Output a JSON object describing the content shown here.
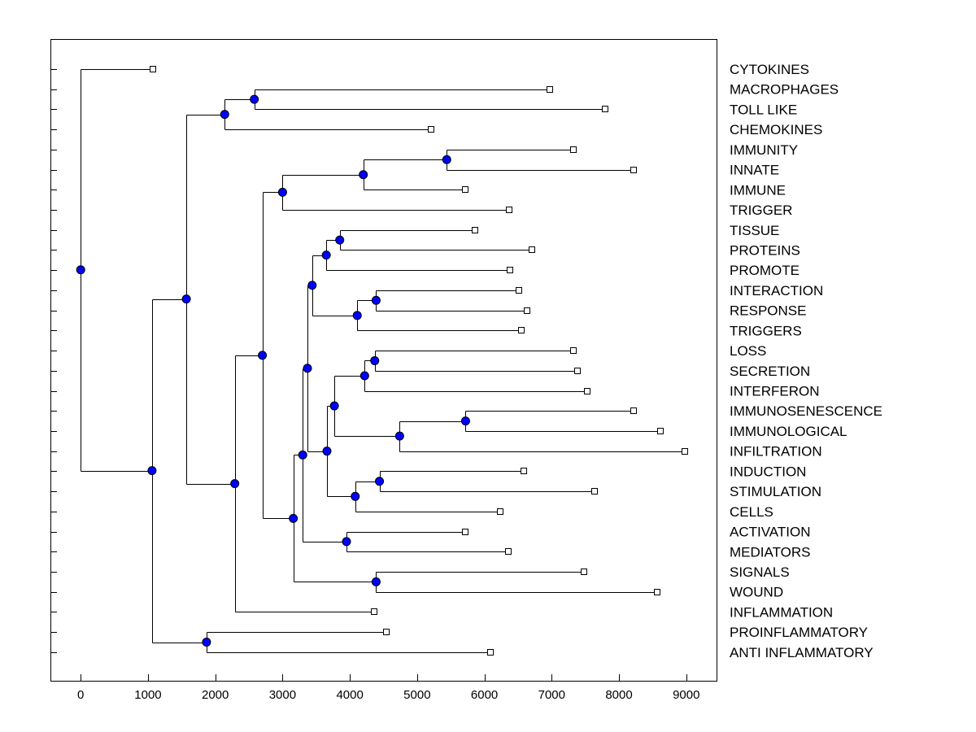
{
  "chart_data": {
    "type": "dendrogram",
    "orientation": "horizontal",
    "xlim": [
      -450,
      9450
    ],
    "xticks": [
      0,
      1000,
      2000,
      3000,
      4000,
      5000,
      6000,
      7000,
      8000,
      9000
    ],
    "xlabel": "",
    "ylabel": "",
    "colors": {
      "node": "#0000ff",
      "leaf": "#ffffff",
      "line": "#000000"
    },
    "leaves": [
      "CYTOKINES",
      "MACROPHAGES",
      "TOLL LIKE",
      "CHEMOKINES",
      "IMMUNITY",
      "INNATE",
      "IMMUNE",
      "TRIGGER",
      "TISSUE",
      "PROTEINS",
      "PROMOTE",
      "INTERACTION",
      "RESPONSE",
      "TRIGGERS",
      "LOSS",
      "SECRETION",
      "INTERFERON",
      "IMMUNOSENESCENCE",
      "IMMUNOLOGICAL",
      "INFILTRATION",
      "INDUCTION",
      "STIMULATION",
      "CELLS",
      "ACTIVATION",
      "MEDIATORS",
      "SIGNALS",
      "WOUND",
      "INFLAMMATION",
      "PROINFLAMMATORY",
      "ANTI INFLAMMATORY"
    ],
    "leaf_values": [
      1070,
      6970,
      7790,
      5210,
      7320,
      8220,
      5720,
      6370,
      5860,
      6710,
      6380,
      6510,
      6630,
      6550,
      7320,
      7380,
      7530,
      8220,
      8620,
      8980,
      6580,
      7640,
      6240,
      5720,
      6350,
      7480,
      8570,
      4360,
      4540,
      6090
    ],
    "tree": {
      "v": 0,
      "c": [
        {
          "leaf": 0
        },
        {
          "v": 1060,
          "c": [
            {
              "v": 1570,
              "c": [
                {
                  "v": 2140,
                  "c": [
                    {
                      "v": 2580,
                      "c": [
                        {
                          "leaf": 1
                        },
                        {
                          "leaf": 2
                        }
                      ]
                    },
                    {
                      "leaf": 3
                    }
                  ]
                },
                {
                  "v": 2290,
                  "c": [
                    {
                      "v": 2700,
                      "c": [
                        {
                          "v": 3000,
                          "c": [
                            {
                              "v": 4200,
                              "c": [
                                {
                                  "v": 5440,
                                  "c": [
                                    {
                                      "leaf": 4
                                    },
                                    {
                                      "leaf": 5
                                    }
                                  ]
                                },
                                {
                                  "leaf": 6
                                }
                              ]
                            },
                            {
                              "leaf": 7
                            }
                          ]
                        },
                        {
                          "v": 3160,
                          "c": [
                            {
                              "v": 3300,
                              "c": [
                                {
                                  "v": 3370,
                                  "c": [
                                    {
                                      "v": 3440,
                                      "c": [
                                        {
                                          "v": 3650,
                                          "c": [
                                            {
                                              "v": 3850,
                                              "c": [
                                                {
                                                  "leaf": 8
                                                },
                                                {
                                                  "leaf": 9
                                                }
                                              ]
                                            },
                                            {
                                              "leaf": 10
                                            }
                                          ]
                                        },
                                        {
                                          "v": 4110,
                                          "c": [
                                            {
                                              "v": 4390,
                                              "c": [
                                                {
                                                  "leaf": 11
                                                },
                                                {
                                                  "leaf": 12
                                                }
                                              ]
                                            },
                                            {
                                              "leaf": 13
                                            }
                                          ]
                                        }
                                      ]
                                    },
                                    {
                                      "v": 3660,
                                      "c": [
                                        {
                                          "v": 3770,
                                          "c": [
                                            {
                                              "v": 4220,
                                              "c": [
                                                {
                                                  "v": 4370,
                                                  "c": [
                                                    {
                                                      "leaf": 14
                                                    },
                                                    {
                                                      "leaf": 15
                                                    }
                                                  ]
                                                },
                                                {
                                                  "leaf": 16
                                                }
                                              ]
                                            },
                                            {
                                              "v": 4740,
                                              "c": [
                                                {
                                                  "v": 5720,
                                                  "c": [
                                                    {
                                                      "leaf": 17
                                                    },
                                                    {
                                                      "leaf": 18
                                                    }
                                                  ]
                                                },
                                                {
                                                  "leaf": 19
                                                }
                                              ]
                                            }
                                          ]
                                        },
                                        {
                                          "v": 4080,
                                          "c": [
                                            {
                                              "v": 4440,
                                              "c": [
                                                {
                                                  "leaf": 20
                                                },
                                                {
                                                  "leaf": 21
                                                }
                                              ]
                                            },
                                            {
                                              "leaf": 22
                                            }
                                          ]
                                        }
                                      ]
                                    }
                                  ]
                                },
                                {
                                  "v": 3950,
                                  "c": [
                                    {
                                      "leaf": 23
                                    },
                                    {
                                      "leaf": 24
                                    }
                                  ]
                                }
                              ]
                            },
                            {
                              "v": 4390,
                              "c": [
                                {
                                  "leaf": 25
                                },
                                {
                                  "leaf": 26
                                }
                              ]
                            }
                          ]
                        }
                      ]
                    },
                    {
                      "leaf": 27
                    }
                  ]
                }
              ]
            },
            {
              "v": 1870,
              "c": [
                {
                  "leaf": 28
                },
                {
                  "leaf": 29
                }
              ]
            }
          ]
        }
      ]
    }
  }
}
